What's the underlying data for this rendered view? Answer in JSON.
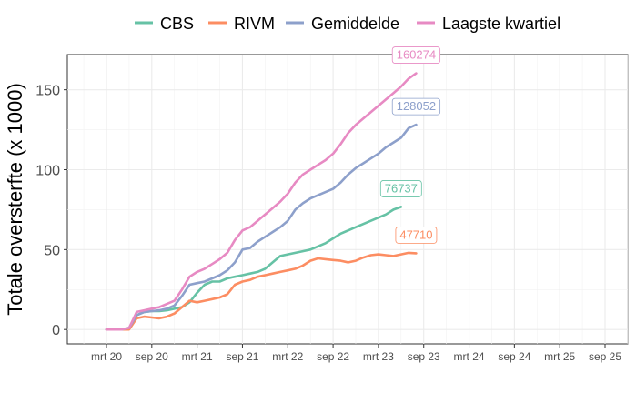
{
  "chart_data": {
    "type": "line",
    "ylabel": "Totale oversterfte (x 1000)",
    "xlabel": "",
    "x_tick_labels": [
      "mrt 20",
      "sep 20",
      "mrt 21",
      "sep 21",
      "mrt 22",
      "sep 22",
      "mrt 23",
      "sep 23",
      "mrt 24",
      "sep 24",
      "mrt 25",
      "sep 25"
    ],
    "y_ticks": [
      0,
      50,
      100,
      150
    ],
    "ylim": [
      -9,
      172
    ],
    "grid": true,
    "legend_position": "top",
    "series": [
      {
        "name": "CBS",
        "color": "#66c2a5",
        "end_label": "76737",
        "points": [
          [
            0,
            0
          ],
          [
            2,
            0
          ],
          [
            3,
            1
          ],
          [
            4,
            9
          ],
          [
            5,
            11
          ],
          [
            6,
            11.5
          ],
          [
            7,
            11.5
          ],
          [
            8,
            12
          ],
          [
            9,
            13
          ],
          [
            10,
            14
          ],
          [
            11,
            17
          ],
          [
            12,
            23
          ],
          [
            13,
            28
          ],
          [
            14,
            30
          ],
          [
            15,
            30
          ],
          [
            16,
            32
          ],
          [
            17,
            33
          ],
          [
            18,
            34
          ],
          [
            19,
            35
          ],
          [
            20,
            36
          ],
          [
            21,
            38
          ],
          [
            22,
            42
          ],
          [
            23,
            46
          ],
          [
            24,
            47
          ],
          [
            25,
            48
          ],
          [
            26,
            49
          ],
          [
            27,
            50
          ],
          [
            28,
            52
          ],
          [
            29,
            54
          ],
          [
            30,
            57
          ],
          [
            31,
            60
          ],
          [
            32,
            62
          ],
          [
            33,
            64
          ],
          [
            34,
            66
          ],
          [
            35,
            68
          ],
          [
            36,
            70
          ],
          [
            37,
            72
          ],
          [
            38,
            75
          ],
          [
            39,
            76.7
          ]
        ]
      },
      {
        "name": "RIVM",
        "color": "#fc8d62",
        "end_label": "47710",
        "points": [
          [
            0,
            0
          ],
          [
            2,
            0
          ],
          [
            3,
            0
          ],
          [
            4,
            7
          ],
          [
            5,
            8
          ],
          [
            6,
            7.5
          ],
          [
            7,
            7
          ],
          [
            8,
            8
          ],
          [
            9,
            10
          ],
          [
            10,
            14
          ],
          [
            11,
            18
          ],
          [
            12,
            17
          ],
          [
            13,
            18
          ],
          [
            14,
            19
          ],
          [
            15,
            20
          ],
          [
            16,
            22
          ],
          [
            17,
            28
          ],
          [
            18,
            30
          ],
          [
            19,
            31
          ],
          [
            20,
            33
          ],
          [
            21,
            34
          ],
          [
            22,
            35
          ],
          [
            23,
            36
          ],
          [
            24,
            37
          ],
          [
            25,
            38
          ],
          [
            26,
            40
          ],
          [
            27,
            43
          ],
          [
            28,
            44.5
          ],
          [
            29,
            44
          ],
          [
            30,
            43.5
          ],
          [
            31,
            43
          ],
          [
            32,
            42
          ],
          [
            33,
            43
          ],
          [
            34,
            45
          ],
          [
            35,
            46.5
          ],
          [
            36,
            47
          ],
          [
            37,
            46.5
          ],
          [
            38,
            46
          ],
          [
            39,
            47
          ],
          [
            40,
            48
          ],
          [
            41,
            47.7
          ]
        ]
      },
      {
        "name": "Gemiddelde",
        "color": "#8da0cb",
        "end_label": "128052",
        "points": [
          [
            0,
            0
          ],
          [
            2,
            0
          ],
          [
            3,
            1
          ],
          [
            4,
            9
          ],
          [
            5,
            11
          ],
          [
            6,
            11.5
          ],
          [
            7,
            12
          ],
          [
            8,
            13
          ],
          [
            9,
            15
          ],
          [
            10,
            21
          ],
          [
            11,
            28
          ],
          [
            12,
            29
          ],
          [
            13,
            30
          ],
          [
            14,
            32
          ],
          [
            15,
            34
          ],
          [
            16,
            37
          ],
          [
            17,
            42
          ],
          [
            18,
            50
          ],
          [
            19,
            51
          ],
          [
            20,
            55
          ],
          [
            21,
            58
          ],
          [
            22,
            61
          ],
          [
            23,
            64
          ],
          [
            24,
            68
          ],
          [
            25,
            75
          ],
          [
            26,
            79
          ],
          [
            27,
            82
          ],
          [
            28,
            84
          ],
          [
            29,
            86
          ],
          [
            30,
            88
          ],
          [
            31,
            92
          ],
          [
            32,
            97
          ],
          [
            33,
            101
          ],
          [
            34,
            104
          ],
          [
            35,
            107
          ],
          [
            36,
            110
          ],
          [
            37,
            114
          ],
          [
            38,
            117
          ],
          [
            39,
            120
          ],
          [
            40,
            126
          ],
          [
            41,
            128.1
          ]
        ]
      },
      {
        "name": "Laagste kwartiel",
        "color": "#e78ac3",
        "end_label": "160274",
        "points": [
          [
            0,
            0
          ],
          [
            2,
            0
          ],
          [
            3,
            1
          ],
          [
            4,
            11
          ],
          [
            5,
            12
          ],
          [
            6,
            13
          ],
          [
            7,
            14
          ],
          [
            8,
            16
          ],
          [
            9,
            18
          ],
          [
            10,
            25
          ],
          [
            11,
            33
          ],
          [
            12,
            36
          ],
          [
            13,
            38
          ],
          [
            14,
            41
          ],
          [
            15,
            44
          ],
          [
            16,
            48
          ],
          [
            17,
            56
          ],
          [
            18,
            62
          ],
          [
            19,
            64
          ],
          [
            20,
            68
          ],
          [
            21,
            72
          ],
          [
            22,
            76
          ],
          [
            23,
            80
          ],
          [
            24,
            85
          ],
          [
            25,
            92
          ],
          [
            26,
            97
          ],
          [
            27,
            100
          ],
          [
            28,
            103
          ],
          [
            29,
            106
          ],
          [
            30,
            110
          ],
          [
            31,
            116
          ],
          [
            32,
            123
          ],
          [
            33,
            128
          ],
          [
            34,
            132
          ],
          [
            35,
            136
          ],
          [
            36,
            140
          ],
          [
            37,
            144
          ],
          [
            38,
            148
          ],
          [
            39,
            152
          ],
          [
            40,
            157
          ],
          [
            41,
            160.3
          ]
        ]
      }
    ]
  }
}
